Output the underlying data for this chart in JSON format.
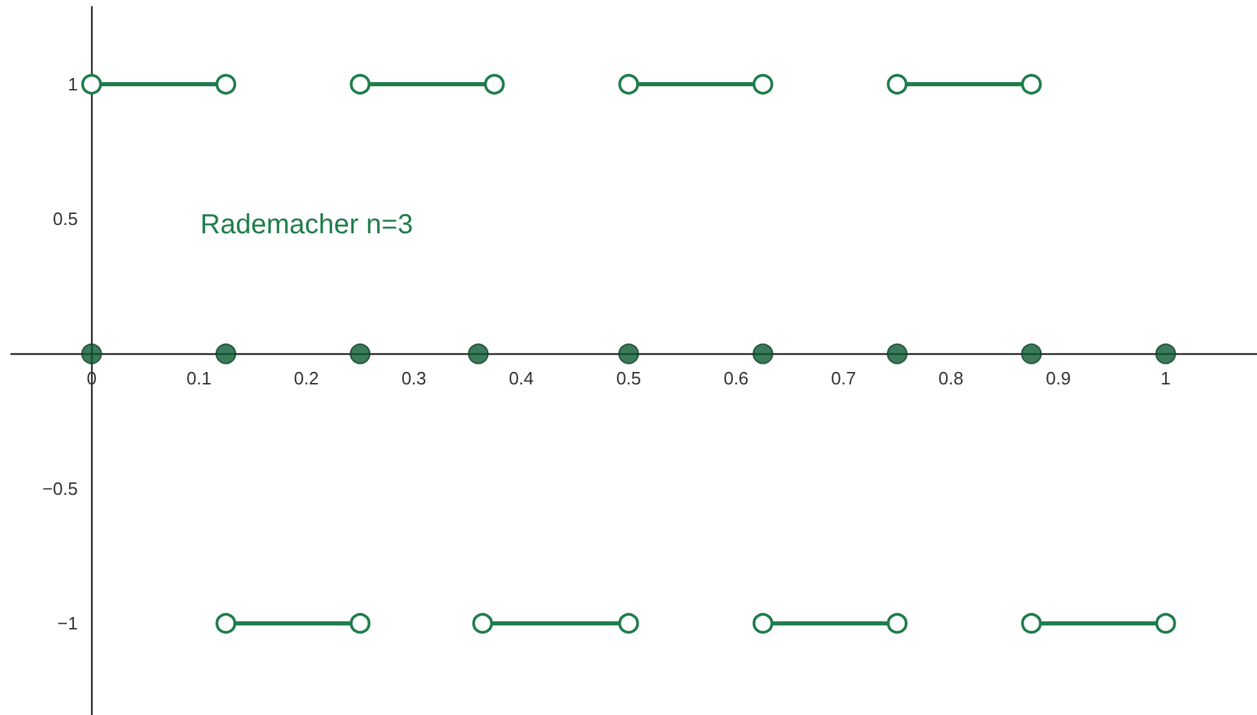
{
  "chart_data": {
    "type": "line",
    "annotations": [
      "Rademacher n=3"
    ],
    "xlim": [
      -0.075,
      1.085
    ],
    "ylim": [
      -1.34,
      1.287
    ],
    "xticks": [
      0,
      0.1,
      0.2,
      0.3,
      0.4,
      0.5,
      0.6,
      0.7,
      0.8,
      0.9,
      1
    ],
    "yticks": [
      {
        "value": -1,
        "label": "−1"
      },
      {
        "value": -0.5,
        "label": "−0.5"
      },
      0.5,
      1
    ],
    "marker": "circle",
    "line_style": "solid",
    "series": [
      {
        "color": "#1e7d4b",
        "x": [
          0,
          0.125
        ],
        "values": [
          1,
          1
        ]
      },
      {
        "color": "#1e7d4b",
        "x": [
          0.25,
          0.375
        ],
        "values": [
          1,
          1
        ]
      },
      {
        "color": "#1e7d4b",
        "x": [
          0.5,
          0.625
        ],
        "values": [
          1,
          1
        ]
      },
      {
        "color": "#1e7d4b",
        "x": [
          0.75,
          0.875
        ],
        "values": [
          1,
          1
        ]
      },
      {
        "color": "#1e7d4b",
        "x": [
          0.125,
          0.25
        ],
        "values": [
          -1,
          -1
        ]
      },
      {
        "color": "#1e7d4b",
        "x": [
          0.364,
          0.5
        ],
        "values": [
          -1,
          -1
        ]
      },
      {
        "color": "#1e7d4b",
        "x": [
          0.625,
          0.75
        ],
        "values": [
          -1,
          -1
        ]
      },
      {
        "color": "#1e7d4b",
        "x": [
          0.875,
          1
        ],
        "values": [
          -1,
          -1
        ]
      },
      {
        "type": "scatter",
        "color": "#0b5a30",
        "x": [
          0,
          0.125,
          0.25,
          0.36,
          0.5,
          0.625,
          0.75,
          0.875,
          1
        ],
        "values": [
          0,
          0,
          0,
          0,
          0,
          0,
          0,
          0,
          0
        ]
      }
    ]
  }
}
